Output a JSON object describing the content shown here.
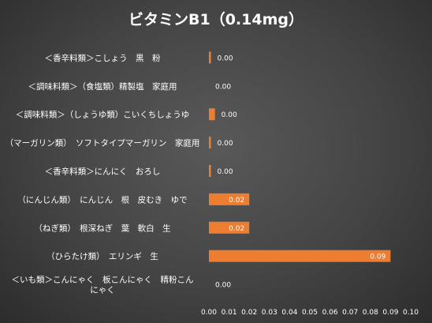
{
  "chart_data": {
    "type": "bar",
    "orientation": "horizontal",
    "title": "ビタミンB1（0.14mg）",
    "categories": [
      "＜香辛料類＞こしょう　黒　粉",
      "＜調味料類＞（食塩類）精製塩　家庭用",
      "＜調味料類＞（しょうゆ類）こいくちしょうゆ",
      "（マーガリン類）　ソフトタイプマーガリン　家庭用",
      "＜香辛料類＞にんにく　おろし",
      "（にんじん類）　にんじん　根　皮むき　ゆで",
      "（ねぎ類）　根深ねぎ　葉　軟白　生",
      "（ひらたけ類）　エリンギ　生",
      "＜いも類＞こんにゃく　板こんにゃく　精粉こんにゃく"
    ],
    "category_lines": [
      [
        "＜香辛料類＞こしょう　黒　粉"
      ],
      [
        "＜調味料類＞（食塩類）精製塩　家庭用"
      ],
      [
        "＜調味料類＞（しょうゆ類）こいくちしょうゆ"
      ],
      [
        "（マーガリン類）　ソフトタイプマーガリン　家庭用"
      ],
      [
        "＜香辛料類＞にんにく　おろし"
      ],
      [
        "（にんじん類）　にんじん　根　皮むき　ゆで"
      ],
      [
        "（ねぎ類）　根深ねぎ　葉　軟白　生"
      ],
      [
        "（ひらたけ類）　エリンギ　生"
      ],
      [
        "＜いも類＞こんにゃく　板こんにゃく　精粉こん",
        "にゃく"
      ]
    ],
    "values": [
      0.001,
      0.0,
      0.003,
      0.001,
      0.001,
      0.02,
      0.02,
      0.09,
      0.0
    ],
    "value_labels": [
      "0.00",
      "0.00",
      "0.00",
      "0.00",
      "0.00",
      "0.02",
      "0.02",
      "0.09",
      "0.00"
    ],
    "xlim": [
      0,
      0.1
    ],
    "xticks": [
      "0.00",
      "0.01",
      "0.02",
      "0.03",
      "0.04",
      "0.05",
      "0.06",
      "0.07",
      "0.08",
      "0.09",
      "0.10"
    ],
    "xtick_values": [
      0,
      0.01,
      0.02,
      0.03,
      0.04,
      0.05,
      0.06,
      0.07,
      0.08,
      0.09,
      0.1
    ],
    "bar_color": "#ed7d31",
    "grid": false,
    "legend": "none"
  }
}
